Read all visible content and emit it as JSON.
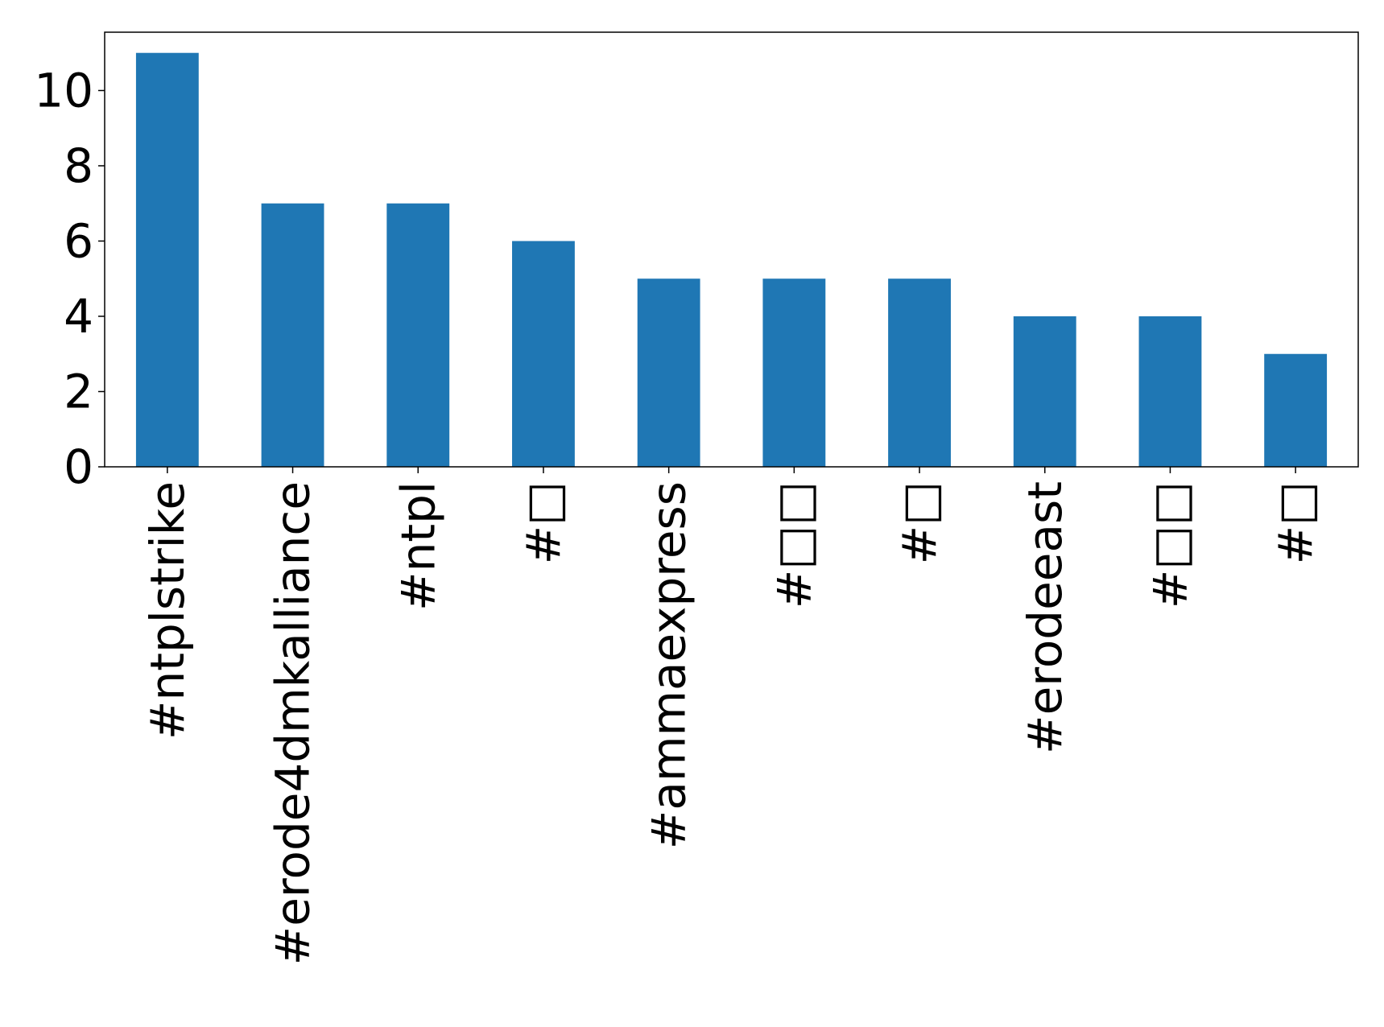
{
  "chart_data": {
    "type": "bar",
    "title": "",
    "xlabel": "",
    "ylabel": "",
    "categories": [
      "#ntplstrike",
      "#erode4dmkalliance",
      "#ntpl",
      "#□",
      "#ammaexpress",
      "#□□",
      "#□",
      "#erodeeast",
      "#□□",
      "#□"
    ],
    "values": [
      11,
      7,
      7,
      6,
      5,
      5,
      5,
      4,
      4,
      3
    ],
    "ylim": [
      0,
      11.55
    ],
    "yticks": [
      0,
      2,
      4,
      6,
      8,
      10
    ],
    "grid": false,
    "legend": "none",
    "bar_color": "#1f77b4"
  }
}
